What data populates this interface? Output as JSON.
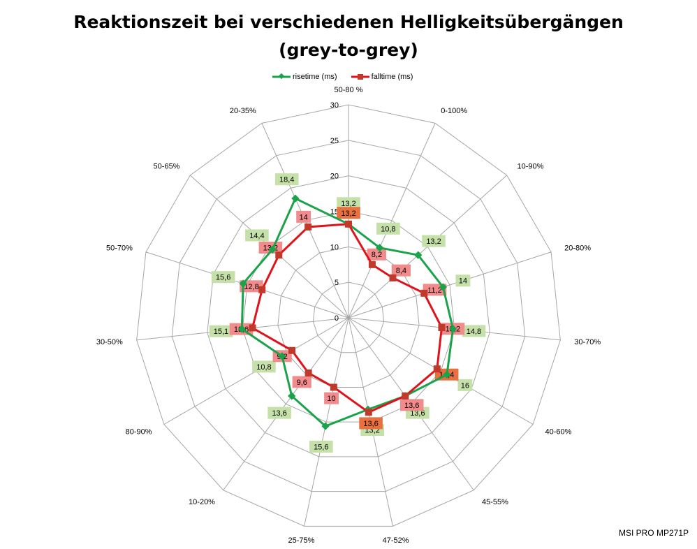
{
  "title_line1": "Reaktionszeit bei verschiedenen Helligkeitsübergängen",
  "title_line2": "(grey-to-grey)",
  "watermark": "MSI PRO MP271P",
  "colors": {
    "rise": "#1aa34a",
    "fall": "#e0121b",
    "rise_label_bg": "#c5e0a8",
    "fall_label_bg": "#f28b8b",
    "fall_label_bg_strong": "#e8703f",
    "grid": "#a6a6a6"
  },
  "chart_data": {
    "type": "radar",
    "title": "Reaktionszeit bei verschiedenen Helligkeitsübergängen (grey-to-grey)",
    "categories": [
      "50-80 %",
      "0-100%",
      "10-90%",
      "20-80%",
      "30-70%",
      "40-60%",
      "45-55%",
      "47-52%",
      "25-75%",
      "10-20%",
      "80-90%",
      "30-50%",
      "50-70%",
      "50-65%",
      "20-35%"
    ],
    "rlim": [
      0,
      30
    ],
    "ticks": [
      0,
      5,
      10,
      15,
      20,
      25,
      30
    ],
    "grid": true,
    "legend": "top",
    "series": [
      {
        "name": "risetime (ms)",
        "values": [
          13.2,
          10.8,
          13.2,
          14,
          14.8,
          16,
          13.6,
          13.2,
          15.6,
          13.6,
          10.8,
          15.1,
          15.6,
          14.4,
          18.4
        ],
        "labels": [
          "13,2",
          "10,8",
          "13,2",
          "14",
          "14,8",
          "16",
          "13,6",
          "13,2",
          "15,6",
          "13,6",
          "10,8",
          "15,1",
          "15,6",
          "14,4",
          "18,4"
        ]
      },
      {
        "name": "falltime (ms)",
        "values": [
          13.2,
          8.2,
          8.4,
          11.2,
          13.2,
          14.4,
          13.6,
          13.6,
          10,
          9.6,
          9.2,
          13.6,
          12.8,
          13.2,
          14
        ],
        "labels": [
          "13,2",
          "8,2",
          "8,4",
          "11,2",
          "13,2",
          "14,4",
          "13,6",
          "13,6",
          "10",
          "9,6",
          "9,2",
          "13,6",
          "12,8",
          "13,2",
          "14"
        ]
      }
    ]
  }
}
